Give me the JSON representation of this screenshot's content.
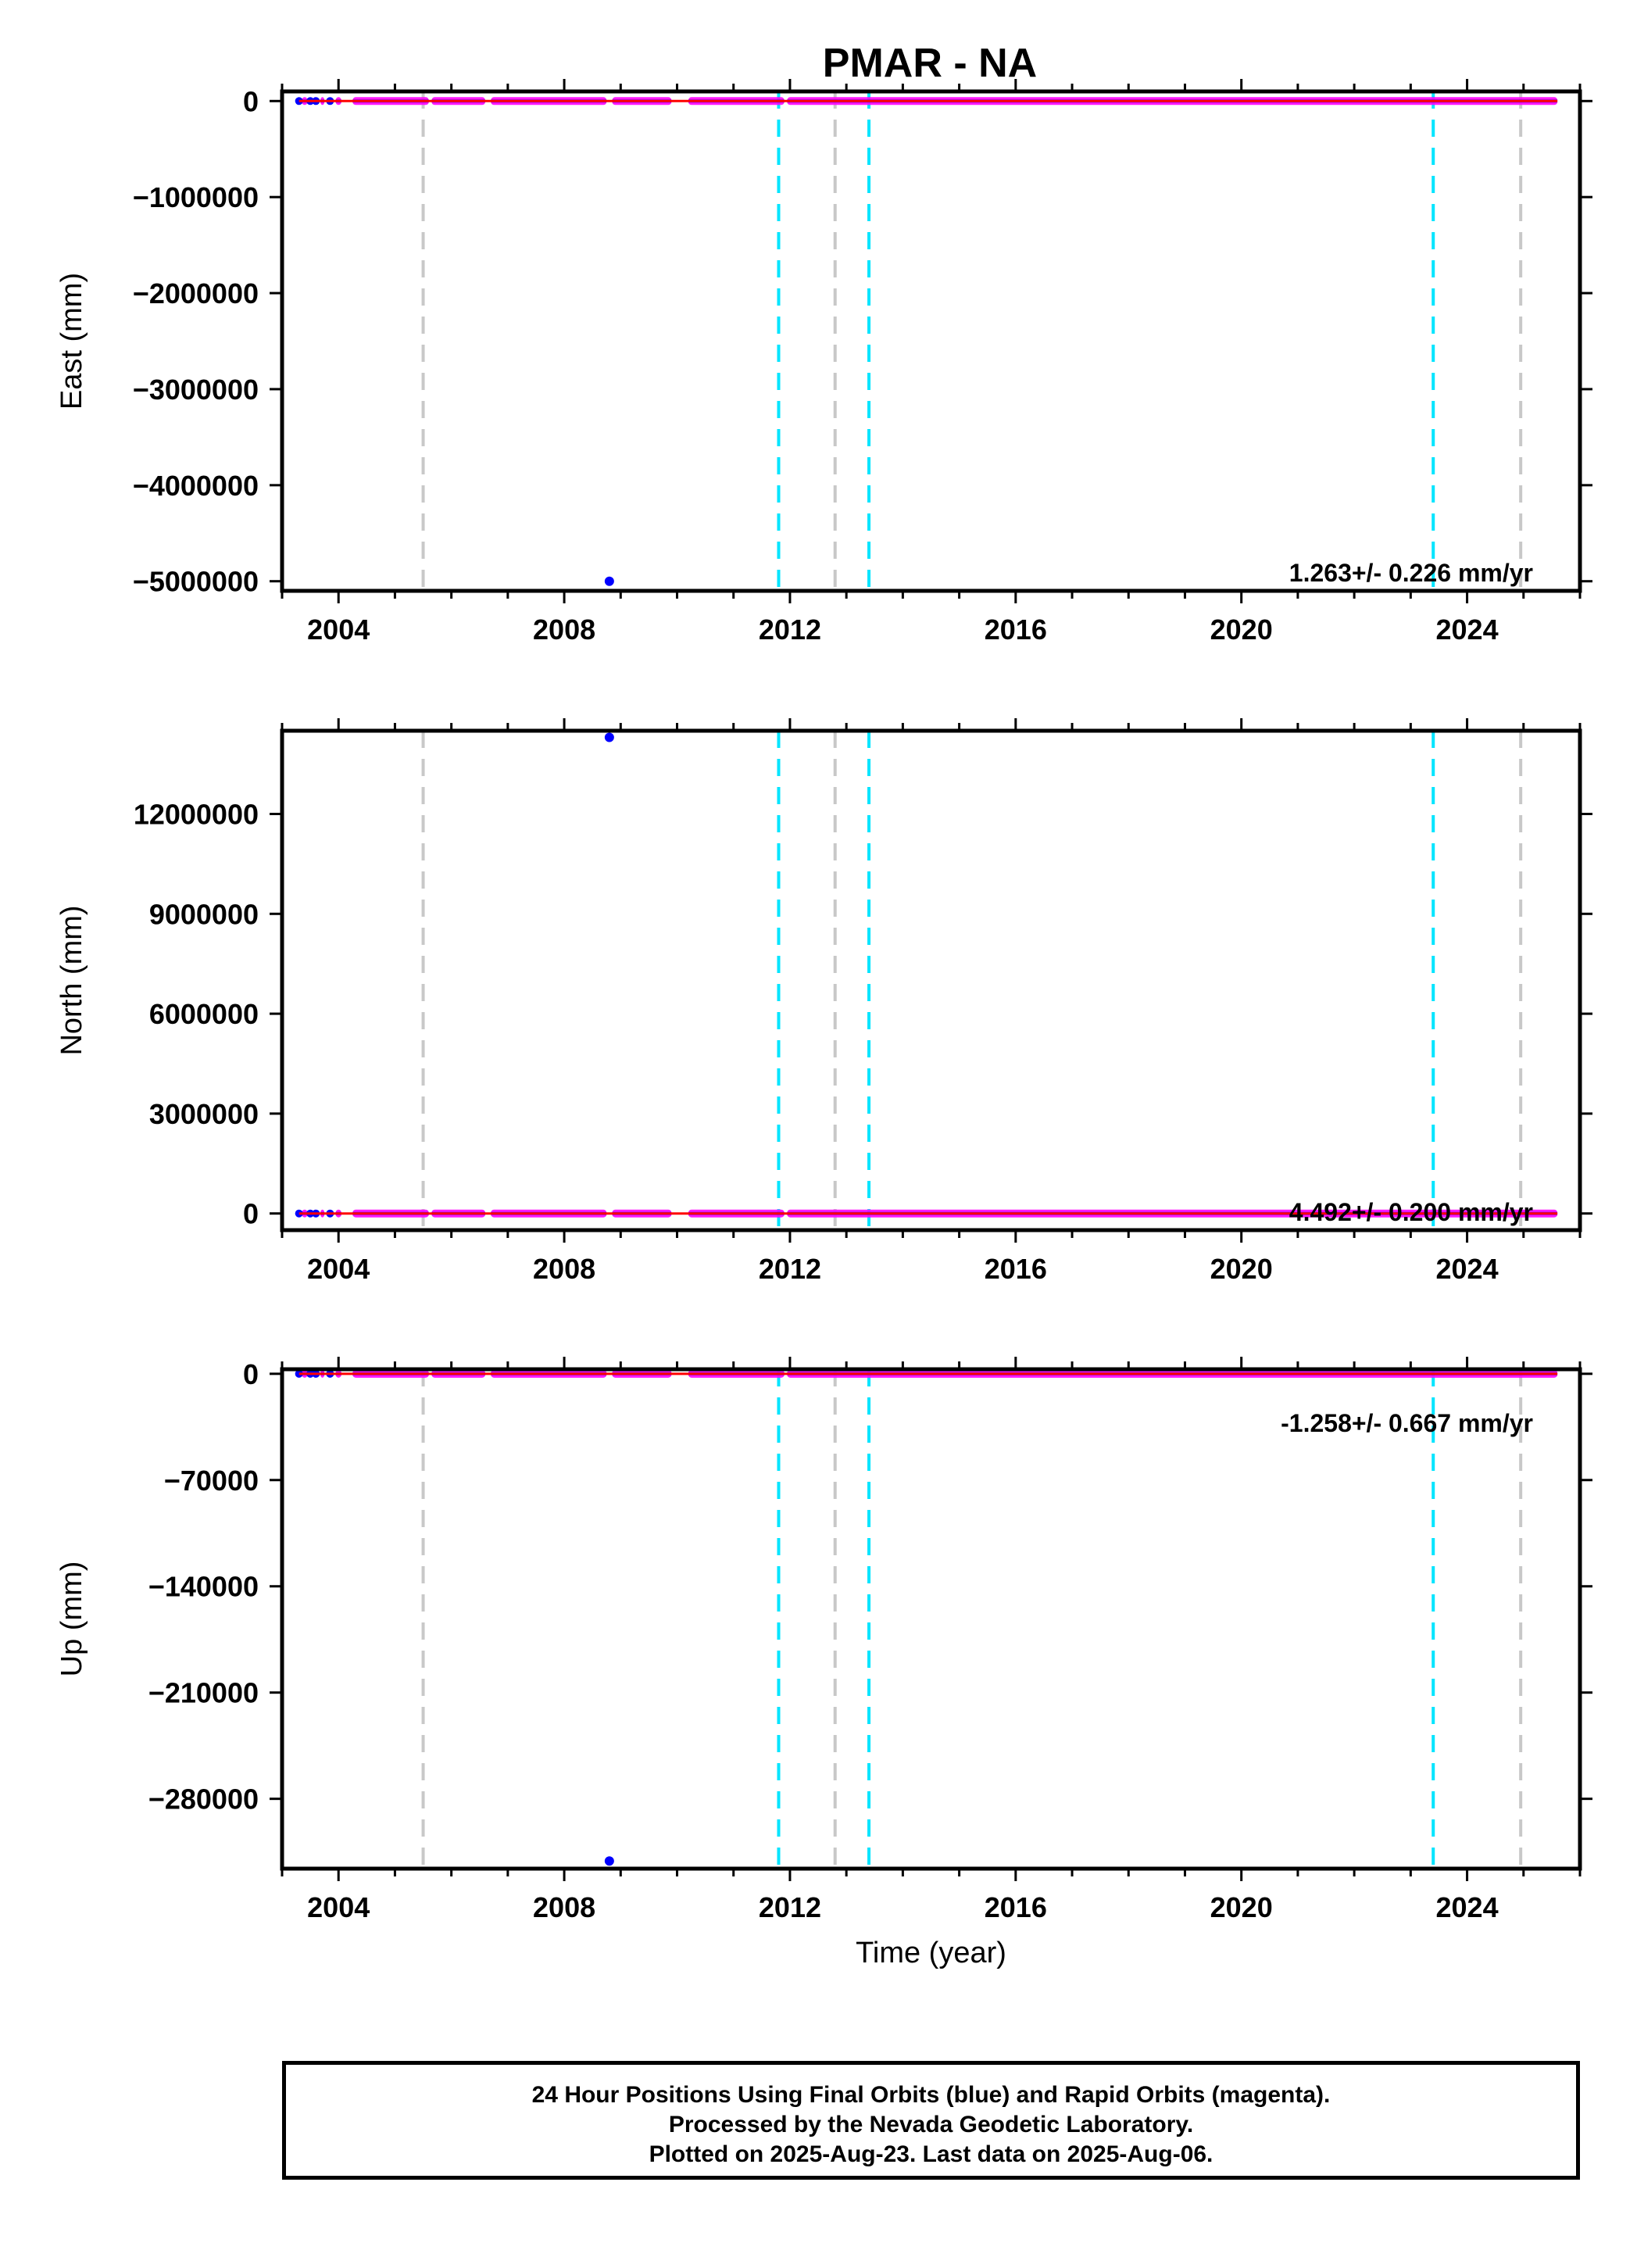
{
  "title": "PMAR - NA",
  "colors": {
    "final_orbits": "#0000ff",
    "rapid_orbits": "#ff00ff",
    "trend": "#ff0000",
    "equipment_change": "#00e5ff",
    "other_event": "#c8c8c8"
  },
  "chart_data": [
    {
      "type": "scatter",
      "panel": "east",
      "ylabel": "East (mm)",
      "xlabel": "",
      "xlim": [
        2003.0,
        2026.0
      ],
      "ylim": [
        -5100000,
        100000
      ],
      "y_ticks": [
        0,
        -1000000,
        -2000000,
        -3000000,
        -4000000,
        -5000000
      ],
      "y_tick_labels": [
        "0",
        "−1000000",
        "−2000000",
        "−3000000",
        "−4000000",
        "−5000000"
      ],
      "x_ticks": [
        2004,
        2008,
        2012,
        2016,
        2020,
        2024
      ],
      "x_tick_labels": [
        "2004",
        "2008",
        "2012",
        "2016",
        "2020",
        "2024"
      ],
      "rate_text": "1.263+/- 0.226 mm/yr",
      "outlier": {
        "x": 2008.8,
        "y": -5000000
      },
      "cyan_events": [
        2011.8,
        2013.4,
        2023.4
      ],
      "gray_events": [
        2005.5,
        2012.8,
        2024.95
      ]
    },
    {
      "type": "scatter",
      "panel": "north",
      "ylabel": "North (mm)",
      "xlabel": "",
      "xlim": [
        2003.0,
        2026.0
      ],
      "ylim": [
        -500000,
        14500000
      ],
      "y_ticks": [
        0,
        3000000,
        6000000,
        9000000,
        12000000
      ],
      "y_tick_labels": [
        "0",
        "3000000",
        "6000000",
        "9000000",
        "12000000"
      ],
      "x_ticks": [
        2004,
        2008,
        2012,
        2016,
        2020,
        2024
      ],
      "x_tick_labels": [
        "2004",
        "2008",
        "2012",
        "2016",
        "2020",
        "2024"
      ],
      "rate_text": "4.492+/- 0.200 mm/yr",
      "outlier": {
        "x": 2008.8,
        "y": 14300000
      },
      "cyan_events": [
        2011.8,
        2013.4,
        2023.4
      ],
      "gray_events": [
        2005.5,
        2012.8,
        2024.95
      ]
    },
    {
      "type": "scatter",
      "panel": "up",
      "ylabel": "Up (mm)",
      "xlabel": "Time (year)",
      "xlim": [
        2003.0,
        2026.0
      ],
      "ylim": [
        -326000,
        3000
      ],
      "y_ticks": [
        0,
        -70000,
        -140000,
        -210000,
        -280000
      ],
      "y_tick_labels": [
        "0",
        "−70000",
        "−140000",
        "−210000",
        "−280000"
      ],
      "x_ticks": [
        2004,
        2008,
        2012,
        2016,
        2020,
        2024
      ],
      "x_tick_labels": [
        "2004",
        "2008",
        "2012",
        "2016",
        "2020",
        "2024"
      ],
      "rate_text": "-1.258+/- 0.667 mm/yr",
      "outlier": {
        "x": 2008.8,
        "y": -321000
      },
      "cyan_events": [
        2011.8,
        2013.4,
        2023.4
      ],
      "gray_events": [
        2005.5,
        2012.8,
        2024.95
      ]
    }
  ],
  "data_coverage": [
    [
      2003.35,
      2003.45
    ],
    [
      2003.55,
      2003.62
    ],
    [
      2003.68,
      2003.75
    ],
    [
      2003.95,
      2004.05
    ],
    [
      2004.25,
      2005.6
    ],
    [
      2005.65,
      2006.6
    ],
    [
      2006.7,
      2008.75
    ],
    [
      2008.85,
      2009.9
    ],
    [
      2010.2,
      2011.9
    ],
    [
      2011.95,
      2025.6
    ]
  ],
  "caption": {
    "line1": "24 Hour Positions Using Final Orbits (blue) and Rapid Orbits (magenta).",
    "line2": "Processed by the Nevada Geodetic Laboratory.",
    "line3": "Plotted on 2025-Aug-23. Last data on 2025-Aug-06."
  }
}
